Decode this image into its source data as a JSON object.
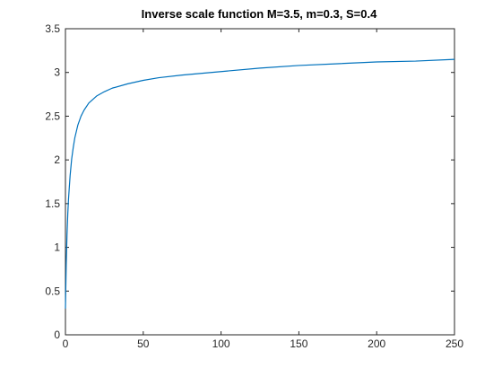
{
  "chart_data": {
    "type": "line",
    "title": "Inverse scale function M=3.5, m=0.3, S=0.4",
    "xlabel": "",
    "ylabel": "",
    "xlim": [
      0,
      250
    ],
    "ylim": [
      0,
      3.5
    ],
    "grid": false,
    "x_ticks": [
      0,
      50,
      100,
      150,
      200,
      250
    ],
    "x_tick_labels": [
      "0",
      "50",
      "100",
      "150",
      "200",
      "250"
    ],
    "y_ticks": [
      0,
      0.5,
      1,
      1.5,
      2,
      2.5,
      3,
      3.5
    ],
    "y_tick_labels": [
      "0",
      "0.5",
      "1",
      "1.5",
      "2",
      "2.5",
      "3",
      "3.5"
    ],
    "series": [
      {
        "color": "#0072bd",
        "x": [
          0,
          0.5,
          1,
          1.5,
          2,
          3,
          4,
          5,
          6,
          8,
          10,
          12,
          15,
          20,
          25,
          30,
          40,
          50,
          60,
          75,
          100,
          125,
          150,
          175,
          200,
          225,
          250
        ],
        "y": [
          0.3,
          0.8,
          1.14,
          1.38,
          1.56,
          1.82,
          2.01,
          2.14,
          2.25,
          2.4,
          2.5,
          2.57,
          2.65,
          2.73,
          2.78,
          2.82,
          2.87,
          2.91,
          2.94,
          2.97,
          3.01,
          3.05,
          3.08,
          3.1,
          3.12,
          3.13,
          3.15
        ]
      }
    ]
  }
}
